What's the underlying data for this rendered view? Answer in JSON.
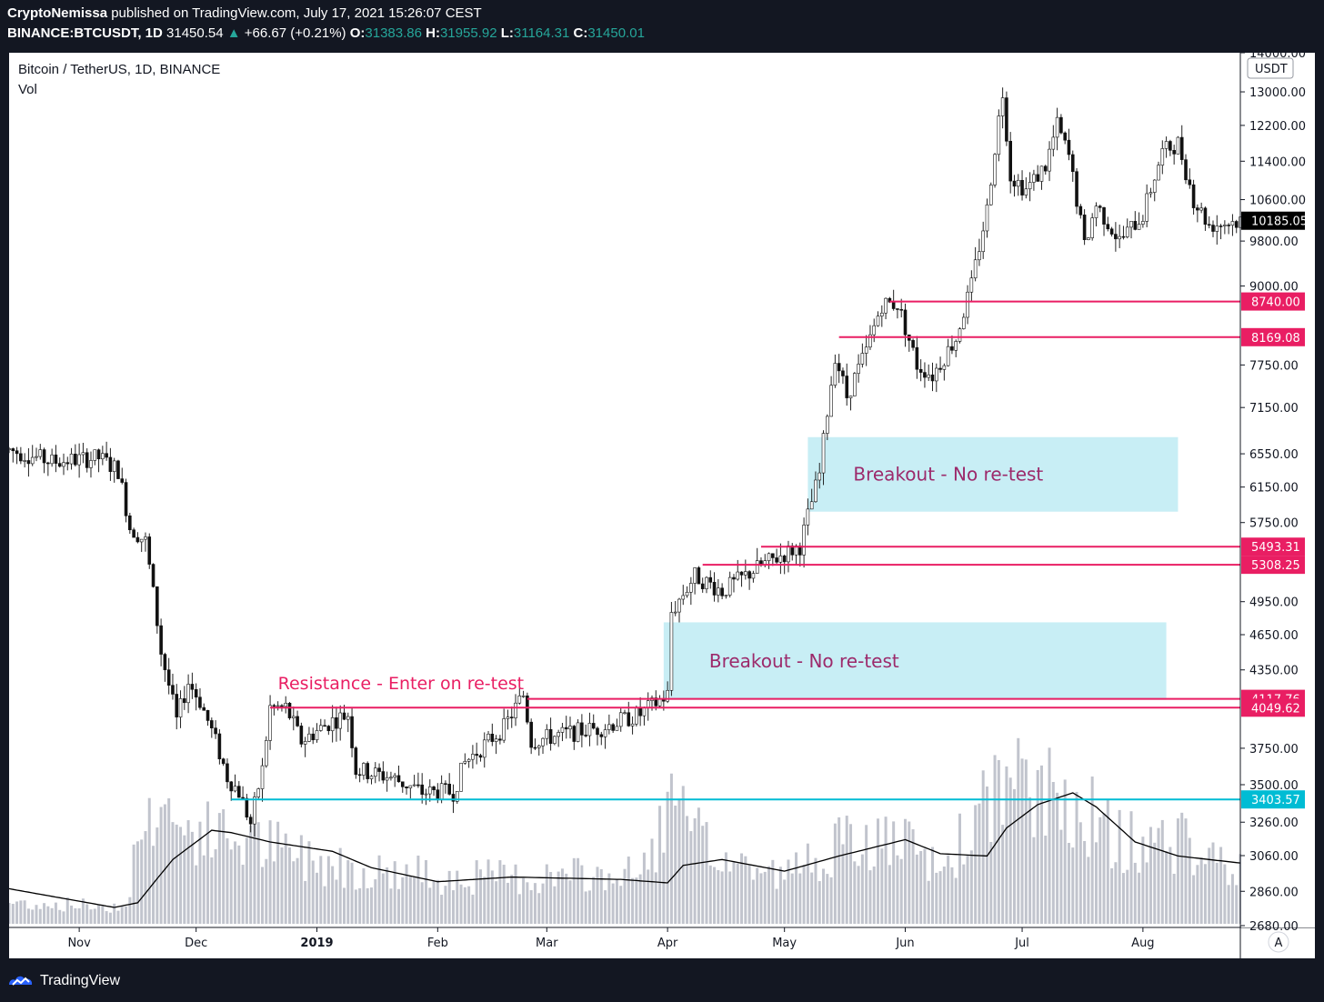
{
  "header": {
    "author": "CryptoNemissa",
    "published_text": "published on TradingView.com, July 17, 2021 15:26:07 CEST",
    "symbol": "BINANCE:BTCUSDT, 1D",
    "last": "31450.54",
    "change": "+66.67 (+0.21%)",
    "o_label": "O:",
    "o": "31383.86",
    "h_label": "H:",
    "h": "31955.92",
    "l_label": "L:",
    "l": "31164.31",
    "c_label": "C:",
    "c": "31450.01"
  },
  "legend": {
    "title": "Bitcoin / TetherUS, 1D, BINANCE",
    "vol": "Vol"
  },
  "footer": {
    "brand": "TradingView"
  },
  "colors": {
    "background": "#131722",
    "up": "#26a69a",
    "resistance": "#e91e63",
    "support": "#00bcd4",
    "zone": "#c8eef5",
    "annotation": "#9c2a6b"
  },
  "chart_data": {
    "type": "candlestick",
    "symbol": "Bitcoin / TetherUS",
    "interval": "1D",
    "exchange": "BINANCE",
    "currency": "USDT",
    "y_scale": "log",
    "ylim": [
      2680,
      14000
    ],
    "y_ticks": [
      "14000.00",
      "13000.00",
      "12200.00",
      "11400.00",
      "10600.00",
      "9800.00",
      "9000.00",
      "7750.00",
      "7150.00",
      "6550.00",
      "6150.00",
      "5750.00",
      "4950.00",
      "4650.00",
      "4350.00",
      "3750.00",
      "3500.00",
      "3260.00",
      "3060.00",
      "2860.00",
      "2680.00"
    ],
    "x_ticks": [
      {
        "label": "Nov",
        "date": "2018-11-01"
      },
      {
        "label": "Dec",
        "date": "2018-12-01"
      },
      {
        "label": "2019",
        "date": "2019-01-01"
      },
      {
        "label": "Feb",
        "date": "2019-02-01"
      },
      {
        "label": "Mar",
        "date": "2019-03-01"
      },
      {
        "label": "Apr",
        "date": "2019-04-01"
      },
      {
        "label": "May",
        "date": "2019-05-01"
      },
      {
        "label": "Jun",
        "date": "2019-06-01"
      },
      {
        "label": "Jul",
        "date": "2019-07-01"
      },
      {
        "label": "Aug",
        "date": "2019-08-01"
      }
    ],
    "date_range": [
      "2018-10-14",
      "2019-08-26"
    ],
    "current_price": {
      "value": 10185.05,
      "label": "10185.05"
    },
    "price_path": [
      [
        "2018-10-14",
        6600
      ],
      [
        "2018-10-25",
        6450
      ],
      [
        "2018-11-06",
        6500
      ],
      [
        "2018-11-11",
        6350
      ],
      [
        "2018-11-14",
        5700
      ],
      [
        "2018-11-18",
        5550
      ],
      [
        "2018-11-22",
        4500
      ],
      [
        "2018-11-26",
        3950
      ],
      [
        "2018-11-29",
        4250
      ],
      [
        "2018-12-02",
        4100
      ],
      [
        "2018-12-06",
        3800
      ],
      [
        "2018-12-09",
        3550
      ],
      [
        "2018-12-12",
        3450
      ],
      [
        "2018-12-15",
        3250
      ],
      [
        "2018-12-18",
        3600
      ],
      [
        "2018-12-20",
        4050
      ],
      [
        "2018-12-24",
        4050
      ],
      [
        "2018-12-28",
        3800
      ],
      [
        "2019-01-05",
        3950
      ],
      [
        "2019-01-09",
        4000
      ],
      [
        "2019-01-11",
        3600
      ],
      [
        "2019-01-20",
        3550
      ],
      [
        "2019-01-28",
        3450
      ],
      [
        "2019-02-05",
        3450
      ],
      [
        "2019-02-08",
        3650
      ],
      [
        "2019-02-18",
        3900
      ],
      [
        "2019-02-23",
        4150
      ],
      [
        "2019-02-25",
        3800
      ],
      [
        "2019-03-05",
        3850
      ],
      [
        "2019-03-15",
        3900
      ],
      [
        "2019-03-25",
        4000
      ],
      [
        "2019-04-01",
        4150
      ],
      [
        "2019-04-02",
        4850
      ],
      [
        "2019-04-08",
        5200
      ],
      [
        "2019-04-15",
        5050
      ],
      [
        "2019-04-25",
        5300
      ],
      [
        "2019-05-05",
        5500
      ],
      [
        "2019-05-10",
        6300
      ],
      [
        "2019-05-14",
        7900
      ],
      [
        "2019-05-17",
        7300
      ],
      [
        "2019-05-22",
        7950
      ],
      [
        "2019-05-26",
        8700
      ],
      [
        "2019-05-30",
        8700
      ],
      [
        "2019-06-04",
        7750
      ],
      [
        "2019-06-08",
        7600
      ],
      [
        "2019-06-14",
        8150
      ],
      [
        "2019-06-18",
        9000
      ],
      [
        "2019-06-22",
        10400
      ],
      [
        "2019-06-26",
        13000
      ],
      [
        "2019-06-28",
        11100
      ],
      [
        "2019-07-02",
        10800
      ],
      [
        "2019-07-07",
        11300
      ],
      [
        "2019-07-10",
        12200
      ],
      [
        "2019-07-13",
        11500
      ],
      [
        "2019-07-17",
        9700
      ],
      [
        "2019-07-20",
        10500
      ],
      [
        "2019-07-26",
        9800
      ],
      [
        "2019-08-01",
        10300
      ],
      [
        "2019-08-06",
        11600
      ],
      [
        "2019-08-10",
        11800
      ],
      [
        "2019-08-14",
        10600
      ],
      [
        "2019-08-18",
        10100
      ],
      [
        "2019-08-26",
        10185
      ]
    ],
    "volume_path": [
      [
        "2018-10-14",
        18
      ],
      [
        "2018-11-13",
        15
      ],
      [
        "2018-11-15",
        55
      ],
      [
        "2018-11-21",
        110
      ],
      [
        "2018-11-27",
        80
      ],
      [
        "2018-12-07",
        75
      ],
      [
        "2018-12-17",
        70
      ],
      [
        "2018-12-25",
        60
      ],
      [
        "2019-01-15",
        45
      ],
      [
        "2019-02-08",
        40
      ],
      [
        "2019-03-01",
        40
      ],
      [
        "2019-03-25",
        42
      ],
      [
        "2019-04-02",
        100
      ],
      [
        "2019-04-12",
        60
      ],
      [
        "2019-05-01",
        40
      ],
      [
        "2019-05-12",
        65
      ],
      [
        "2019-05-30",
        70
      ],
      [
        "2019-06-10",
        45
      ],
      [
        "2019-06-26",
        120
      ],
      [
        "2019-07-05",
        110
      ],
      [
        "2019-07-15",
        105
      ],
      [
        "2019-07-25",
        70
      ],
      [
        "2019-08-10",
        70
      ],
      [
        "2019-08-26",
        45
      ]
    ],
    "volume_ma_path": [
      [
        "2018-10-14",
        30
      ],
      [
        "2018-11-10",
        14
      ],
      [
        "2018-11-16",
        18
      ],
      [
        "2018-11-25",
        55
      ],
      [
        "2018-12-05",
        80
      ],
      [
        "2018-12-10",
        78
      ],
      [
        "2018-12-20",
        70
      ],
      [
        "2019-01-05",
        62
      ],
      [
        "2019-01-15",
        48
      ],
      [
        "2019-02-01",
        36
      ],
      [
        "2019-02-20",
        40
      ],
      [
        "2019-03-20",
        38
      ],
      [
        "2019-04-01",
        35
      ],
      [
        "2019-04-05",
        50
      ],
      [
        "2019-04-15",
        55
      ],
      [
        "2019-05-01",
        45
      ],
      [
        "2019-05-15",
        58
      ],
      [
        "2019-06-01",
        72
      ],
      [
        "2019-06-10",
        60
      ],
      [
        "2019-06-22",
        58
      ],
      [
        "2019-06-27",
        82
      ],
      [
        "2019-07-05",
        102
      ],
      [
        "2019-07-14",
        112
      ],
      [
        "2019-07-20",
        100
      ],
      [
        "2019-07-30",
        70
      ],
      [
        "2019-08-10",
        58
      ],
      [
        "2019-08-26",
        52
      ]
    ],
    "horizontal_lines": [
      {
        "price": 8740.0,
        "label": "8740.00",
        "color": "#e91e63",
        "from": "2019-05-28"
      },
      {
        "price": 8169.08,
        "label": "8169.08",
        "color": "#e91e63",
        "from": "2019-05-15"
      },
      {
        "price": 5493.31,
        "label": "5493.31",
        "color": "#e91e63",
        "from": "2019-04-25"
      },
      {
        "price": 5308.25,
        "label": "5308.25",
        "color": "#e91e63",
        "from": "2019-04-10"
      },
      {
        "price": 4117.76,
        "label": "4117.76",
        "color": "#e91e63",
        "from": "2019-02-24"
      },
      {
        "price": 4049.62,
        "label": "4049.62",
        "color": "#e91e63",
        "from": "2018-12-20"
      },
      {
        "price": 3403.57,
        "label": "3403.57",
        "color": "#00bcd4",
        "from": "2018-12-10"
      }
    ],
    "zones": [
      {
        "label": "Breakout - No re-test",
        "from": "2019-05-07",
        "to": "2019-08-10",
        "price_low": 5870,
        "price_high": 6760
      },
      {
        "label": "Breakout - No re-test",
        "from": "2019-03-31",
        "to": "2019-08-07",
        "price_low": 4110,
        "price_high": 4760
      }
    ],
    "annotations": [
      {
        "text": "Resistance - Enter on re-test",
        "date": "2018-12-22",
        "price": 4150
      }
    ]
  }
}
